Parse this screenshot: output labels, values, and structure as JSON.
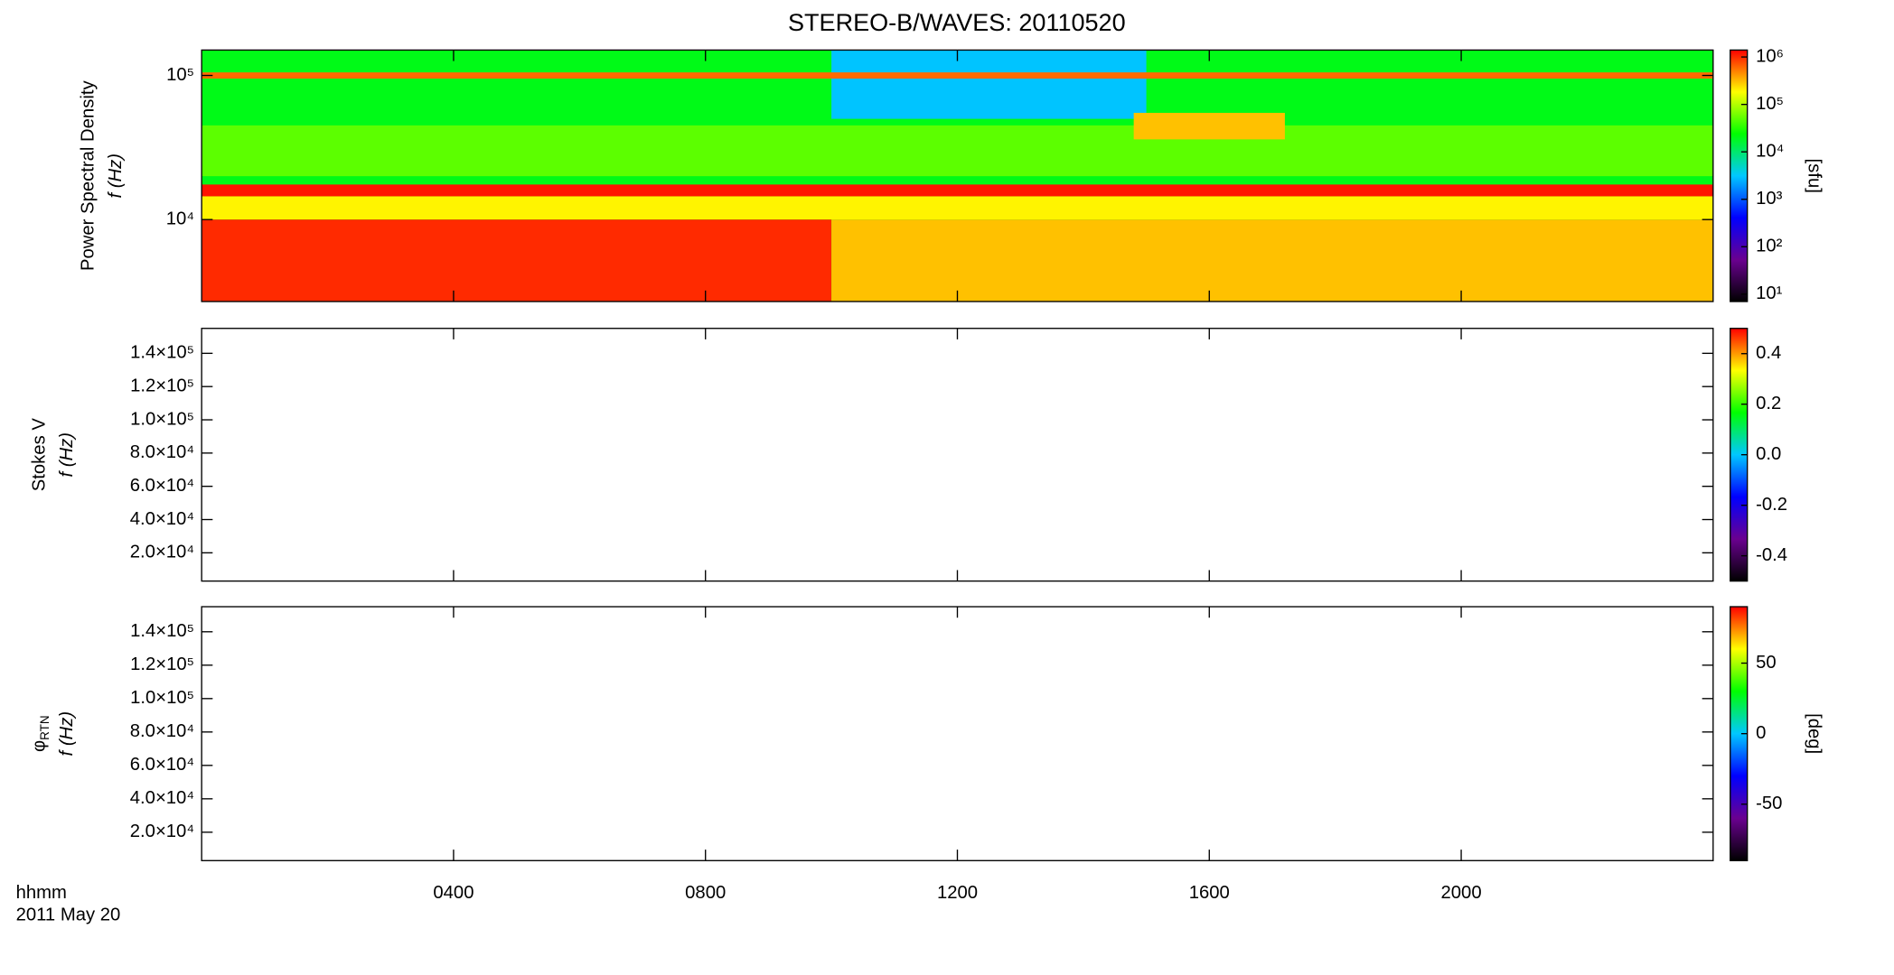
{
  "chart_data": [
    {
      "type": "spectrogram",
      "title": "STEREO-B/WAVES: 20110520",
      "ylabel": "Power Spectral Density",
      "ylabel2": "f (Hz)",
      "ylog": true,
      "ylim": [
        2700,
        150000
      ],
      "yticks": [
        {
          "value": 10000,
          "label": "10⁴"
        },
        {
          "value": 100000,
          "label": "10⁵"
        }
      ],
      "colormap": [
        "#000000",
        "#6a0090",
        "#0000ff",
        "#00c8ff",
        "#00ff00",
        "#ffff00",
        "#ff0000"
      ],
      "colorbar": {
        "log": true,
        "lim": [
          7,
          1400000
        ],
        "label": "[sfu]",
        "ticks": [
          {
            "value": 10,
            "label": "10¹"
          },
          {
            "value": 100,
            "label": "10²"
          },
          {
            "value": 1000,
            "label": "10³"
          },
          {
            "value": 10000,
            "label": "10⁴"
          },
          {
            "value": 100000,
            "label": "10⁵"
          },
          {
            "value": 1000000,
            "label": "10⁶"
          }
        ]
      },
      "bands": [
        {
          "tlim": [
            0,
            24
          ],
          "flim": [
            2700,
            150000
          ],
          "value": 20000
        },
        {
          "tlim": [
            10,
            15
          ],
          "flim": [
            50000,
            150000
          ],
          "value": 3000
        },
        {
          "tlim": [
            0,
            24
          ],
          "flim": [
            20000,
            45000
          ],
          "value": 50000
        },
        {
          "tlim": [
            0,
            24
          ],
          "flim": [
            10000,
            14500
          ],
          "value": 200000
        },
        {
          "tlim": [
            0,
            10
          ],
          "flim": [
            2700,
            10000
          ],
          "value": 1000000
        },
        {
          "tlim": [
            10,
            24
          ],
          "flim": [
            2700,
            10000
          ],
          "value": 300000
        },
        {
          "tlim": [
            0,
            24
          ],
          "flim": [
            14500,
            17500
          ],
          "value": 1200000
        },
        {
          "tlim": [
            0,
            24
          ],
          "flim": [
            95000,
            105000
          ],
          "value": 600000
        },
        {
          "tlim": [
            14.8,
            17.2
          ],
          "flim": [
            36000,
            55000
          ],
          "value": 300000
        }
      ]
    },
    {
      "type": "spectrogram",
      "ylabel": "Stokes V",
      "ylabel2": "f (Hz)",
      "ylim": [
        3000,
        155000
      ],
      "yticks": [
        {
          "value": 20000,
          "label": "2.0×10⁴"
        },
        {
          "value": 40000,
          "label": "4.0×10⁴"
        },
        {
          "value": 60000,
          "label": "6.0×10⁴"
        },
        {
          "value": 80000,
          "label": "8.0×10⁴"
        },
        {
          "value": 100000,
          "label": "1.0×10⁵"
        },
        {
          "value": 120000,
          "label": "1.2×10⁵"
        },
        {
          "value": 140000,
          "label": "1.4×10⁵"
        }
      ],
      "colormap": [
        "#000000",
        "#6a0090",
        "#0000ff",
        "#00c8ff",
        "#00ff00",
        "#ffff00",
        "#ff0000"
      ],
      "colorbar": {
        "log": false,
        "lim": [
          -0.5,
          0.5
        ],
        "ticks": [
          -0.4,
          -0.2,
          {
            "value": 0,
            "label": "0.0"
          },
          0.2,
          0.4
        ]
      },
      "bands": []
    },
    {
      "type": "spectrogram",
      "ylabel": "φ",
      "ylabel_sub": "RTN",
      "ylabel2": "f (Hz)",
      "ylim": [
        3000,
        155000
      ],
      "yticks": [
        {
          "value": 20000,
          "label": "2.0×10⁴"
        },
        {
          "value": 40000,
          "label": "4.0×10⁴"
        },
        {
          "value": 60000,
          "label": "6.0×10⁴"
        },
        {
          "value": 80000,
          "label": "8.0×10⁴"
        },
        {
          "value": 100000,
          "label": "1.0×10⁵"
        },
        {
          "value": 120000,
          "label": "1.2×10⁵"
        },
        {
          "value": 140000,
          "label": "1.4×10⁵"
        }
      ],
      "colormap": [
        "#000000",
        "#6a0090",
        "#0000ff",
        "#00c8ff",
        "#00ff00",
        "#ffff00",
        "#ff0000"
      ],
      "colorbar": {
        "log": false,
        "lim": [
          -90,
          90
        ],
        "label": "[deg]",
        "ticks": [
          -50,
          0,
          50
        ]
      },
      "bands": [],
      "xlim": [
        0,
        24
      ],
      "xticks": [
        {
          "value": 4,
          "label": "0400"
        },
        {
          "value": 8,
          "label": "0800"
        },
        {
          "value": 12,
          "label": "1200"
        },
        {
          "value": 16,
          "label": "1600"
        },
        {
          "value": 20,
          "label": "2000"
        }
      ],
      "xlabel": "hhmm",
      "date": "2011 May 20"
    }
  ]
}
